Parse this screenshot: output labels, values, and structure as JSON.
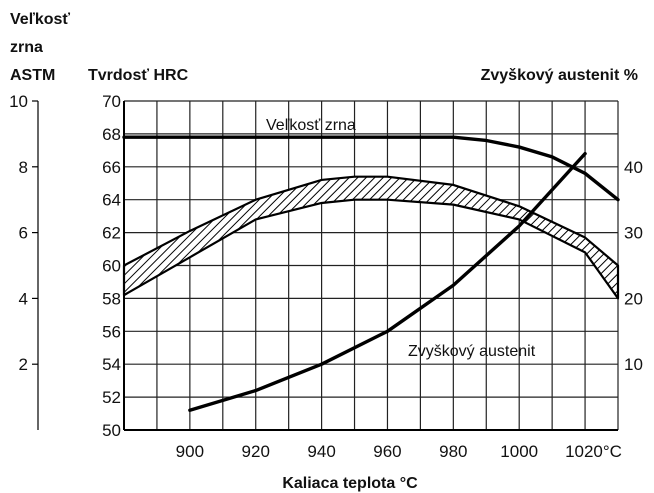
{
  "chart_data": {
    "type": "line",
    "axes": {
      "grain_size": {
        "label_lines": [
          "Veľkosť",
          "zrna",
          "ASTM"
        ],
        "range": [
          0,
          10
        ],
        "ticks": [
          2,
          4,
          6,
          8,
          10
        ]
      },
      "hardness": {
        "label": "Tvrdosť HRC",
        "range": [
          50,
          70
        ],
        "ticks": [
          50,
          52,
          54,
          56,
          58,
          60,
          62,
          64,
          66,
          68,
          70
        ]
      },
      "retained_austenite": {
        "label": "Zvyškový austenit %",
        "range": [
          0,
          50
        ],
        "ticks": [
          10,
          20,
          30,
          40
        ]
      },
      "x": {
        "label": "Kaliaca teplota °C",
        "range": [
          880,
          1030
        ],
        "ticks": [
          900,
          920,
          940,
          960,
          980,
          1000,
          1020
        ],
        "tick_labels": [
          "900",
          "920",
          "940",
          "960",
          "980",
          "1000",
          "1020°C"
        ]
      }
    },
    "series": [
      {
        "name": "Veľkosť zrna",
        "axis": "grain_size",
        "color": "#000000",
        "x": [
          880,
          900,
          920,
          940,
          960,
          980,
          990,
          1000,
          1010,
          1020,
          1030
        ],
        "y": [
          8.9,
          8.9,
          8.9,
          8.9,
          8.9,
          8.9,
          8.8,
          8.6,
          8.3,
          7.8,
          7.0
        ]
      },
      {
        "name": "Zvyškový austenit",
        "axis": "retained_austenite",
        "color": "#000000",
        "x": [
          900,
          920,
          940,
          960,
          980,
          1000,
          1020
        ],
        "y": [
          3,
          6,
          10,
          15,
          22,
          31,
          42
        ]
      }
    ],
    "hardness_band": {
      "axis": "hardness",
      "x": [
        880,
        900,
        920,
        940,
        950,
        960,
        980,
        1000,
        1020,
        1030
      ],
      "upper": [
        60.0,
        62.1,
        64.0,
        65.2,
        65.4,
        65.4,
        64.9,
        63.6,
        61.7,
        60.0
      ],
      "lower": [
        58.2,
        60.5,
        62.8,
        63.8,
        64.0,
        64.0,
        63.7,
        62.8,
        60.8,
        58.0
      ]
    },
    "annotations": [
      "Veľkosť zrna",
      "Zvyškový austenit"
    ],
    "grid": true
  }
}
